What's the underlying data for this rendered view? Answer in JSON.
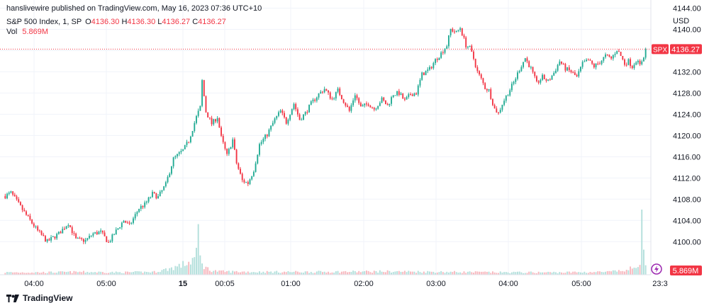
{
  "publish_info": "hanslivewire published on TradingView.com, May 16, 2023 07:36 UTC+10",
  "symbol": {
    "name": "S&P 500 Index, 1, SP",
    "open_label": "O",
    "open": "4136.30",
    "high_label": "H",
    "high": "4136.30",
    "low_label": "L",
    "low": "4136.27",
    "close_label": "C",
    "close": "4136.27",
    "ticker": "SPX"
  },
  "volume": {
    "label": "Vol",
    "value": "5.869M"
  },
  "currency": "USD",
  "branding": "TradingView",
  "colors": {
    "up": "#22ab94",
    "down": "#f23645",
    "grid": "#f0f3fa",
    "text": "#131722",
    "vol_up": "#b2dfdb",
    "vol_down": "#f7b7bd"
  },
  "chart_data": {
    "type": "candlestick",
    "x_tick_labels": [
      "04:00",
      "05:00",
      "15",
      "00:05",
      "01:00",
      "02:00",
      "03:00",
      "04:00",
      "05:00",
      "23:3"
    ],
    "y_tick_labels": [
      "4100.00",
      "4104.00",
      "4108.00",
      "4112.00",
      "4116.00",
      "4120.00",
      "4124.00",
      "4128.00",
      "4132.00",
      "4136.00",
      "4140.00",
      "4144.00"
    ],
    "ylim": [
      4097.5,
      4145
    ],
    "last_price": 4136.27,
    "last_price_label": "4136.27",
    "last_volume_label": "5.869M",
    "close_path": [
      [
        0,
        4108.6
      ],
      [
        3,
        4109.2
      ],
      [
        10,
        4105.5
      ],
      [
        17,
        4102.0
      ],
      [
        22,
        4100.0
      ],
      [
        28,
        4101.5
      ],
      [
        33,
        4103.5
      ],
      [
        37,
        4100.4
      ],
      [
        42,
        4100.2
      ],
      [
        46,
        4101.5
      ],
      [
        50,
        4101.8
      ],
      [
        54,
        4099.8
      ],
      [
        58,
        4102.0
      ],
      [
        62,
        4104.0
      ],
      [
        65,
        4103.0
      ],
      [
        70,
        4106.3
      ],
      [
        73,
        4107.0
      ],
      [
        77,
        4109.0
      ],
      [
        80,
        4108.4
      ],
      [
        84,
        4110.8
      ],
      [
        88,
        4115.6
      ],
      [
        93,
        4117.2
      ],
      [
        96,
        4119.0
      ],
      [
        100,
        4123.5
      ],
      [
        102,
        4125.3
      ],
      [
        103,
        4130.3
      ],
      [
        105,
        4124.5
      ],
      [
        108,
        4122.2
      ],
      [
        111,
        4123.5
      ],
      [
        113,
        4119.6
      ],
      [
        116,
        4116.2
      ],
      [
        119,
        4119.2
      ],
      [
        121,
        4114.8
      ],
      [
        124,
        4111.5
      ],
      [
        127,
        4111.0
      ],
      [
        130,
        4113.5
      ],
      [
        133,
        4118.3
      ],
      [
        137,
        4120.2
      ],
      [
        141,
        4123.0
      ],
      [
        144,
        4124.6
      ],
      [
        147,
        4122.5
      ],
      [
        151,
        4126.0
      ],
      [
        154,
        4123.0
      ],
      [
        157,
        4124.2
      ],
      [
        160,
        4126.0
      ],
      [
        164,
        4127.8
      ],
      [
        167,
        4128.8
      ],
      [
        171,
        4126.8
      ],
      [
        174,
        4128.5
      ],
      [
        177,
        4126.5
      ],
      [
        180,
        4124.6
      ],
      [
        183,
        4127.8
      ],
      [
        186,
        4125.3
      ],
      [
        190,
        4126.0
      ],
      [
        193,
        4125.0
      ],
      [
        197,
        4126.8
      ],
      [
        200,
        4125.6
      ],
      [
        203,
        4127.8
      ],
      [
        206,
        4128.0
      ],
      [
        209,
        4126.5
      ],
      [
        212,
        4127.8
      ],
      [
        215,
        4128.0
      ],
      [
        218,
        4131.5
      ],
      [
        222,
        4132.5
      ],
      [
        225,
        4134.2
      ],
      [
        228,
        4135.5
      ],
      [
        231,
        4137.0
      ],
      [
        233,
        4140.0
      ],
      [
        236,
        4139.4
      ],
      [
        238,
        4140.3
      ],
      [
        241,
        4137.0
      ],
      [
        243,
        4136.5
      ],
      [
        245,
        4134.5
      ],
      [
        247,
        4132.0
      ],
      [
        249,
        4130.6
      ],
      [
        251,
        4129.0
      ],
      [
        253,
        4128.5
      ],
      [
        256,
        4125.0
      ],
      [
        258,
        4124.2
      ],
      [
        260,
        4126.0
      ],
      [
        263,
        4128.0
      ],
      [
        266,
        4130.0
      ],
      [
        269,
        4132.5
      ],
      [
        272,
        4134.6
      ],
      [
        275,
        4132.6
      ],
      [
        278,
        4129.8
      ],
      [
        281,
        4131.0
      ],
      [
        284,
        4130.2
      ],
      [
        287,
        4131.8
      ],
      [
        290,
        4134.0
      ],
      [
        293,
        4132.6
      ],
      [
        296,
        4132.0
      ],
      [
        299,
        4131.0
      ],
      [
        302,
        4133.5
      ],
      [
        305,
        4134.2
      ],
      [
        308,
        4133.0
      ],
      [
        311,
        4133.8
      ],
      [
        314,
        4135.0
      ],
      [
        317,
        4134.5
      ],
      [
        320,
        4136.2
      ],
      [
        322,
        4135.0
      ],
      [
        324,
        4133.5
      ],
      [
        326,
        4134.0
      ],
      [
        328,
        4133.0
      ],
      [
        330,
        4134.2
      ],
      [
        332,
        4133.2
      ],
      [
        334,
        4135.0
      ],
      [
        335,
        4136.27
      ]
    ],
    "volume_profile": [
      [
        0,
        0.05
      ],
      [
        20,
        0.05
      ],
      [
        40,
        0.06
      ],
      [
        60,
        0.05
      ],
      [
        78,
        0.06
      ],
      [
        85,
        0.12
      ],
      [
        92,
        0.2
      ],
      [
        97,
        0.28
      ],
      [
        100,
        0.42
      ],
      [
        101,
        1.0
      ],
      [
        102,
        0.35
      ],
      [
        104,
        0.18
      ],
      [
        107,
        0.1
      ],
      [
        112,
        0.07
      ],
      [
        130,
        0.06
      ],
      [
        160,
        0.06
      ],
      [
        200,
        0.07
      ],
      [
        230,
        0.06
      ],
      [
        260,
        0.05
      ],
      [
        290,
        0.05
      ],
      [
        315,
        0.06
      ],
      [
        325,
        0.09
      ],
      [
        330,
        0.18
      ],
      [
        332,
        0.35
      ],
      [
        333,
        1.35
      ],
      [
        334,
        0.7
      ],
      [
        335,
        0.3
      ]
    ]
  }
}
